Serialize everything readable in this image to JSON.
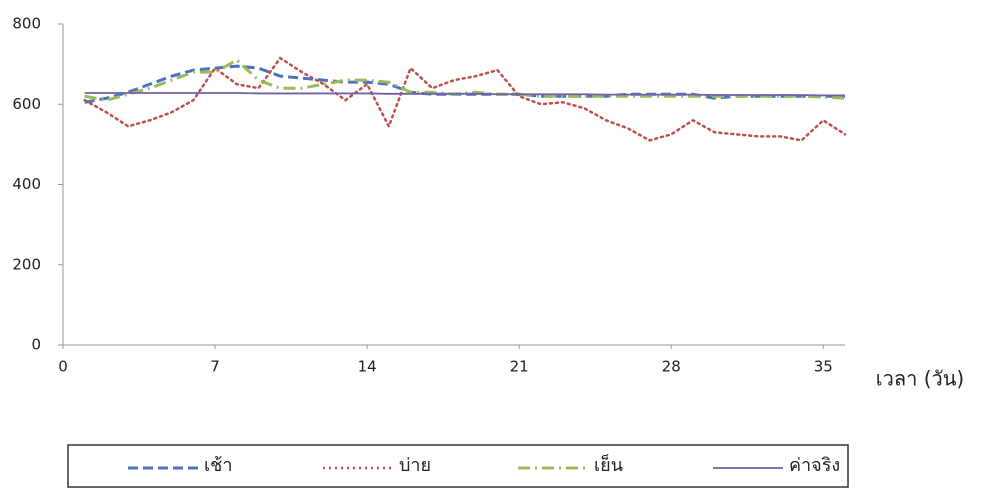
{
  "chart_data": {
    "type": "line",
    "x_label": "เวลา (วัน)",
    "x": [
      1,
      2,
      3,
      4,
      5,
      6,
      7,
      8,
      9,
      10,
      11,
      12,
      13,
      14,
      15,
      16,
      17,
      18,
      19,
      20,
      21,
      22,
      23,
      24,
      25,
      26,
      27,
      28,
      29,
      30,
      31,
      32,
      33,
      34,
      35,
      36
    ],
    "series": [
      {
        "name": "เช้า",
        "color": "#4a72c4",
        "style": "dashed",
        "values": [
          605,
          615,
          630,
          650,
          670,
          685,
          690,
          695,
          690,
          670,
          665,
          660,
          655,
          655,
          650,
          630,
          625,
          625,
          625,
          625,
          625,
          620,
          620,
          620,
          620,
          625,
          625,
          625,
          625,
          615,
          620,
          620,
          620,
          620,
          620,
          620
        ]
      },
      {
        "name": "บ่าย",
        "color": "#c0504d",
        "style": "dotted",
        "values": [
          610,
          580,
          545,
          560,
          580,
          610,
          690,
          650,
          640,
          715,
          680,
          650,
          610,
          650,
          545,
          690,
          640,
          660,
          670,
          685,
          620,
          600,
          605,
          590,
          560,
          540,
          510,
          525,
          560,
          530,
          525,
          520,
          520,
          510,
          560,
          525
        ]
      },
      {
        "name": "เย็น",
        "color": "#9bbb59",
        "style": "dashdot",
        "values": [
          620,
          610,
          625,
          640,
          660,
          680,
          680,
          710,
          660,
          640,
          640,
          650,
          660,
          660,
          655,
          630,
          630,
          625,
          630,
          625,
          625,
          620,
          620,
          620,
          620,
          620,
          620,
          620,
          620,
          620,
          620,
          620,
          620,
          620,
          618,
          615
        ]
      },
      {
        "name": "ค่าจริง",
        "color": "#7060a8",
        "style": "solid",
        "values": [
          628,
          628,
          628,
          628,
          628,
          628,
          628,
          628,
          627,
          627,
          627,
          627,
          627,
          627,
          626,
          626,
          626,
          626,
          626,
          625,
          625,
          625,
          625,
          625,
          624,
          624,
          624,
          624,
          624,
          623,
          623,
          623,
          623,
          623,
          622,
          622
        ]
      }
    ],
    "xlim": [
      0,
      36
    ],
    "xticks": [
      0,
      7,
      14,
      21,
      28,
      35
    ],
    "ylim": [
      0,
      800
    ],
    "yticks": [
      0,
      200,
      400,
      600,
      800
    ],
    "grid": false,
    "legend": "bottom"
  }
}
